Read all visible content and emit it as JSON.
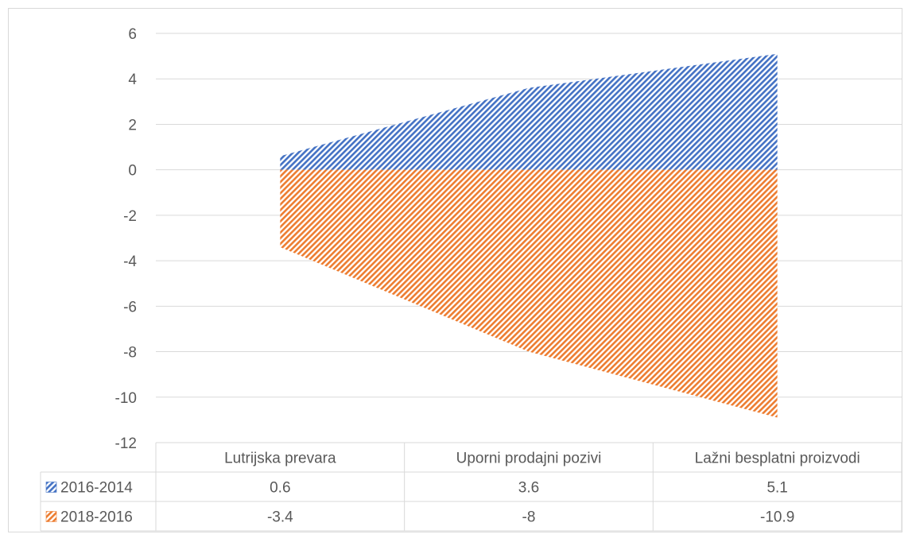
{
  "chart_data": {
    "type": "area",
    "categories": [
      "Lutrijska prevara",
      "Uporni prodajni pozivi",
      "Lažni besplatni proizvodi"
    ],
    "series": [
      {
        "name": "2016-2014",
        "values": [
          0.6,
          3.6,
          5.1
        ],
        "color": "#4472c4"
      },
      {
        "name": "2018-2016",
        "values": [
          -3.4,
          -8,
          -10.9
        ],
        "color": "#ed7d31"
      }
    ],
    "ylim": [
      -12,
      6
    ],
    "yticks": [
      6,
      4,
      2,
      0,
      -2,
      -4,
      -6,
      -8,
      -10,
      -12
    ],
    "grid": true,
    "legend": "data-table",
    "fill_pattern": "diagonal-hatch",
    "data_table": {
      "rows": [
        {
          "label": "2016-2014",
          "cells": [
            "0.6",
            "3.6",
            "5.1"
          ]
        },
        {
          "label": "2018-2016",
          "cells": [
            "-3.4",
            "-8",
            "-10.9"
          ]
        }
      ]
    }
  }
}
